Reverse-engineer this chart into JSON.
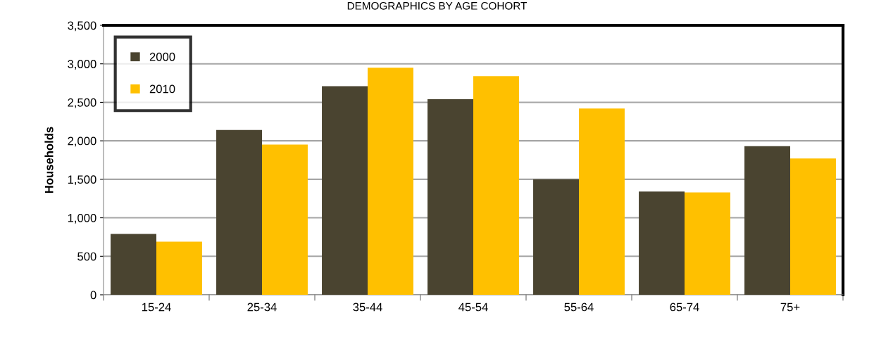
{
  "chart_data": {
    "type": "bar",
    "title": "DEMOGRAPHICS BY AGE COHORT",
    "ylabel": "Households",
    "categories": [
      "15-24",
      "25-34",
      "35-44",
      "45-54",
      "55-64",
      "65-74",
      "75+"
    ],
    "series": [
      {
        "name": "2000",
        "color": "#4a4430",
        "values": [
          790,
          2140,
          2710,
          2540,
          1500,
          1340,
          1930
        ]
      },
      {
        "name": "2010",
        "color": "#ffc000",
        "values": [
          690,
          1950,
          2950,
          2840,
          2420,
          1330,
          1770
        ]
      }
    ],
    "ylim": [
      0,
      3500
    ],
    "yticks": [
      {
        "value": 0,
        "label": "0"
      },
      {
        "value": 500,
        "label": "500"
      },
      {
        "value": 1000,
        "label": "1,000"
      },
      {
        "value": 1500,
        "label": "1,500"
      },
      {
        "value": 2000,
        "label": "2,000"
      },
      {
        "value": 2500,
        "label": "2,500"
      },
      {
        "value": 3000,
        "label": "3,000"
      },
      {
        "value": 3500,
        "label": "3,500"
      }
    ],
    "grid": "y",
    "legend": "top left"
  }
}
